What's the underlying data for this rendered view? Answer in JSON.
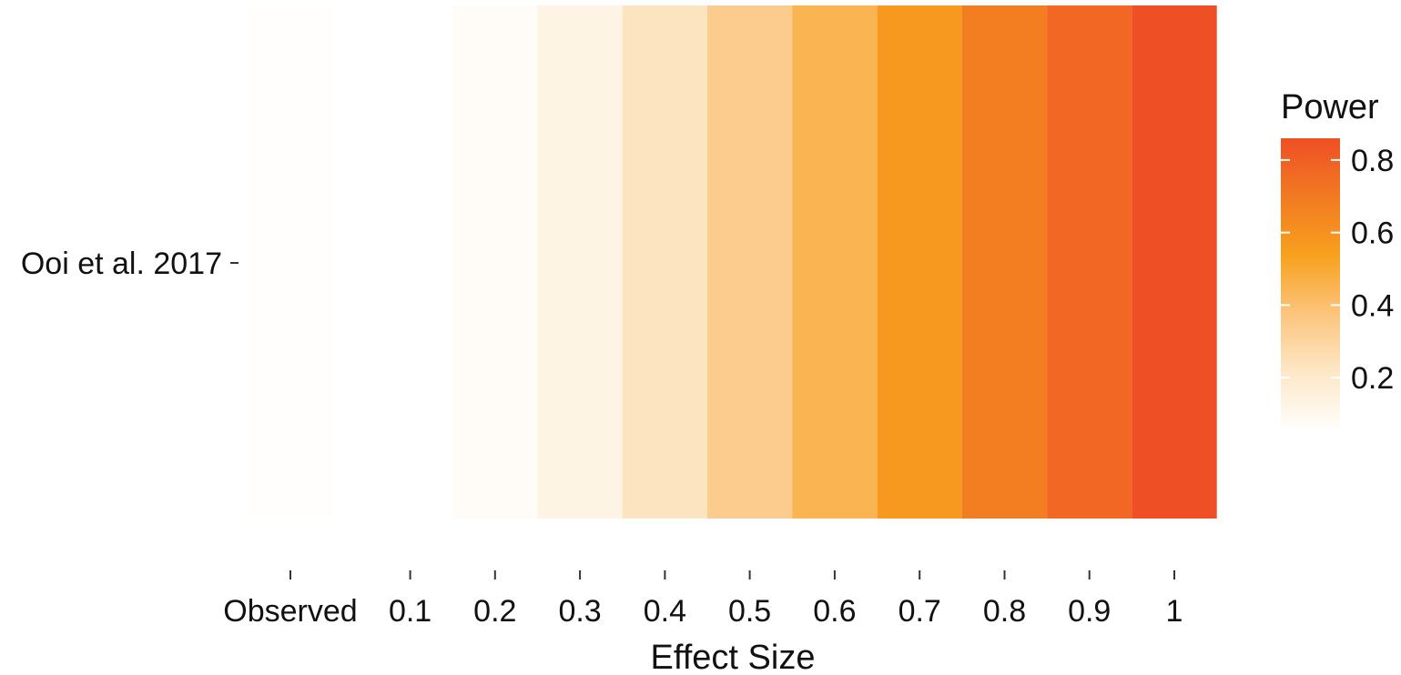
{
  "chart_data": {
    "type": "heatmap",
    "title": "",
    "xlabel": "Effect Size",
    "ylabel": "",
    "rows": [
      "Ooi et al. 2017"
    ],
    "columns": [
      "Observed",
      "0.1",
      "0.2",
      "0.3",
      "0.4",
      "0.5",
      "0.6",
      "0.7",
      "0.8",
      "0.9",
      "1"
    ],
    "values": [
      [
        0.06,
        0.05,
        0.07,
        0.13,
        0.23,
        0.34,
        0.45,
        0.57,
        0.68,
        0.77,
        0.86
      ]
    ],
    "legend": {
      "title": "Power",
      "ticks": [
        "0.2",
        "0.4",
        "0.6",
        "0.8"
      ],
      "tick_values": [
        0.2,
        0.4,
        0.6,
        0.8
      ],
      "range": [
        0.05,
        0.86
      ],
      "placement": "right"
    },
    "colors": {
      "low": "#ffffff",
      "stops": [
        "#ffffff",
        "#fde8c8",
        "#fcc57e",
        "#f8a11e",
        "#f27a22",
        "#ef4f25"
      ]
    }
  }
}
